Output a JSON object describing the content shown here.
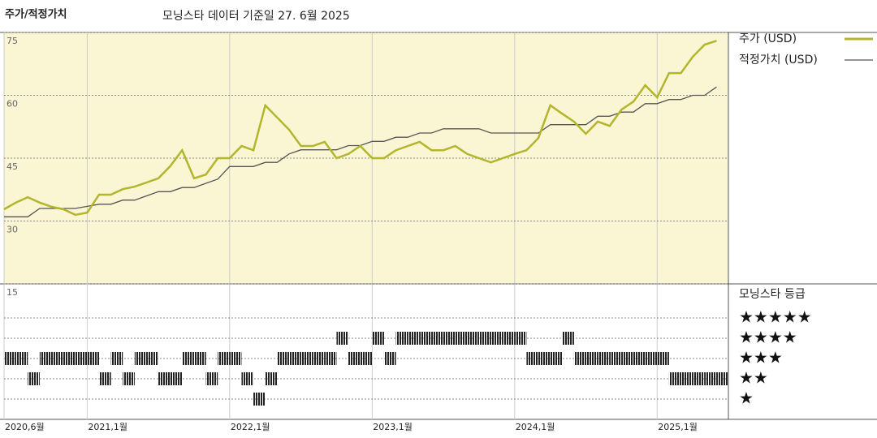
{
  "chart_data": [
    {
      "type": "line",
      "title": "주가/적정가치",
      "subtitle": "모닝스타 데이터 기준일 27. 6월 2025",
      "x": [
        "2020-06",
        "2020-07",
        "2020-08",
        "2020-09",
        "2020-10",
        "2020-11",
        "2020-12",
        "2021-01",
        "2021-02",
        "2021-03",
        "2021-04",
        "2021-05",
        "2021-06",
        "2021-07",
        "2021-08",
        "2021-09",
        "2021-10",
        "2021-11",
        "2021-12",
        "2022-01",
        "2022-02",
        "2022-03",
        "2022-04",
        "2022-05",
        "2022-06",
        "2022-07",
        "2022-08",
        "2022-09",
        "2022-10",
        "2022-11",
        "2022-12",
        "2023-01",
        "2023-02",
        "2023-03",
        "2023-04",
        "2023-05",
        "2023-06",
        "2023-07",
        "2023-08",
        "2023-09",
        "2023-10",
        "2023-11",
        "2023-12",
        "2024-01",
        "2024-02",
        "2024-03",
        "2024-04",
        "2024-05",
        "2024-06",
        "2024-07",
        "2024-08",
        "2024-09",
        "2024-10",
        "2024-11",
        "2024-12",
        "2025-01",
        "2025-02",
        "2025-03",
        "2025-04",
        "2025-05",
        "2025-06"
      ],
      "series": [
        {
          "name": "주가 (USD)",
          "color": "#b3b52c",
          "values": [
            32.8,
            34.4,
            35.7,
            34.4,
            33.4,
            32.8,
            31.5,
            32,
            36.3,
            36.3,
            37.6,
            38.2,
            39.2,
            40.2,
            43.1,
            46.9,
            40.2,
            41.1,
            45,
            45,
            47.9,
            46.9,
            57.6,
            54.7,
            51.8,
            47.9,
            47.9,
            48.9,
            45,
            46,
            47.9,
            45,
            45,
            46.9,
            47.9,
            48.9,
            46.9,
            46.9,
            47.9,
            46,
            45,
            44,
            45,
            46,
            46.9,
            49.8,
            57.6,
            55.6,
            53.7,
            50.8,
            53.7,
            52.7,
            56.6,
            58.5,
            62.4,
            59.5,
            65.3,
            65.3,
            69.2,
            72.1,
            73
          ]
        },
        {
          "name": "적정가치 (USD)",
          "color": "#555555",
          "values": [
            31,
            31,
            31,
            33,
            33,
            33,
            33,
            33.5,
            34,
            34,
            35,
            35,
            36,
            37,
            37,
            38,
            38,
            39,
            40,
            43,
            43,
            43,
            44,
            44,
            46,
            47,
            47,
            47,
            47,
            48,
            48,
            49,
            49,
            50,
            50,
            51,
            51,
            52,
            52,
            52,
            52,
            51,
            51,
            51,
            51,
            51,
            53,
            53,
            53,
            53,
            55,
            55,
            56,
            56,
            58,
            58,
            59,
            59,
            60,
            60,
            62
          ]
        }
      ],
      "xlim": [
        "2020-06",
        "2025-07"
      ],
      "xticks": [
        {
          "value": "2020-06",
          "label": "2020,6월"
        },
        {
          "value": "2021-01",
          "label": "2021,1월"
        },
        {
          "value": "2022-01",
          "label": "2022,1월"
        },
        {
          "value": "2023-01",
          "label": "2023,1월"
        },
        {
          "value": "2024-01",
          "label": "2024,1월"
        },
        {
          "value": "2025-01",
          "label": "2025,1월"
        }
      ],
      "ylim": [
        15,
        75
      ],
      "yticks": [
        15,
        30,
        45,
        60,
        75
      ],
      "grid": true
    },
    {
      "type": "rating",
      "title": "모닝스타 등급",
      "x": [
        "2020-06",
        "2020-07",
        "2020-08",
        "2020-09",
        "2020-10",
        "2020-11",
        "2020-12",
        "2021-01",
        "2021-02",
        "2021-03",
        "2021-04",
        "2021-05",
        "2021-06",
        "2021-07",
        "2021-08",
        "2021-09",
        "2021-10",
        "2021-11",
        "2021-12",
        "2022-01",
        "2022-02",
        "2022-03",
        "2022-04",
        "2022-05",
        "2022-06",
        "2022-07",
        "2022-08",
        "2022-09",
        "2022-10",
        "2022-11",
        "2022-12",
        "2023-01",
        "2023-02",
        "2023-03",
        "2023-04",
        "2023-05",
        "2023-06",
        "2023-07",
        "2023-08",
        "2023-09",
        "2023-10",
        "2023-11",
        "2023-12",
        "2024-01",
        "2024-02",
        "2024-03",
        "2024-04",
        "2024-05",
        "2024-06",
        "2024-07",
        "2024-08",
        "2024-09",
        "2024-10",
        "2024-11",
        "2024-12",
        "2025-01",
        "2025-02",
        "2025-03",
        "2025-04",
        "2025-05",
        "2025-06"
      ],
      "values": [
        3,
        3,
        2,
        3,
        3,
        3,
        3,
        3,
        2,
        3,
        2,
        3,
        3,
        2,
        2,
        3,
        3,
        2,
        3,
        3,
        2,
        1,
        2,
        3,
        3,
        3,
        3,
        3,
        4,
        3,
        3,
        4,
        3,
        4,
        4,
        4,
        4,
        4,
        4,
        4,
        4,
        4,
        4,
        4,
        3,
        3,
        3,
        4,
        3,
        3,
        3,
        3,
        3,
        3,
        3,
        3,
        2,
        2,
        2,
        2,
        2
      ],
      "color": "#222222",
      "ylim": [
        0,
        6.68
      ],
      "yticks": [
        {
          "value": 5,
          "label": "★★★★★"
        },
        {
          "value": 4,
          "label": "★★★★"
        },
        {
          "value": 3,
          "label": "★★★"
        },
        {
          "value": 2,
          "label": "★★"
        },
        {
          "value": 1,
          "label": "★"
        }
      ]
    }
  ]
}
